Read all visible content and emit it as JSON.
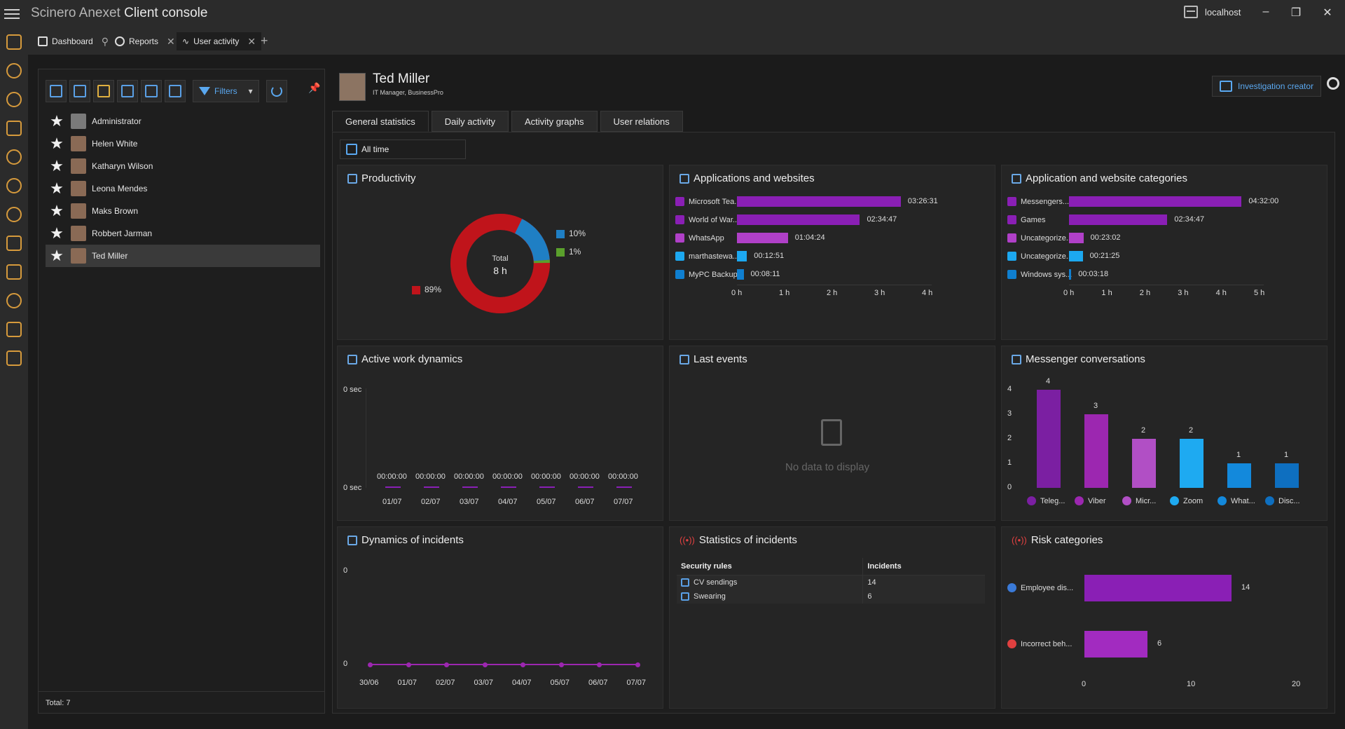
{
  "app": {
    "title_light": "Scinero Anexet",
    "title_main": "Client console",
    "server": "localhost"
  },
  "tabs": [
    {
      "label": "Dashboard"
    },
    {
      "label": "Reports"
    },
    {
      "label": "User activity"
    }
  ],
  "userpanel": {
    "filters_label": "Filters",
    "users": [
      "Administrator",
      "Helen White",
      "Katharyn Wilson",
      "Leona Mendes",
      "Maks Brown",
      "Robbert Jarman",
      "Ted Miller"
    ],
    "selected": "Ted Miller",
    "total": "Total: 7"
  },
  "profile": {
    "name": "Ted Miller",
    "subtitle": "IT Manager, BusinessPro",
    "investigation_button": "Investigation creator"
  },
  "detail_tabs": [
    "General statistics",
    "Daily activity",
    "Activity graphs",
    "User relations"
  ],
  "active_detail_tab": "General statistics",
  "range": {
    "label": "All time"
  },
  "productivity": {
    "title": "Productivity",
    "center_label": "Total",
    "center_value": "8 h",
    "legend": [
      {
        "label": "10%",
        "color": "#1f7fc4"
      },
      {
        "label": "1%",
        "color": "#5aa02c"
      },
      {
        "label": "89%",
        "color": "#c0141b"
      }
    ]
  },
  "apps_card": {
    "title": "Applications and websites",
    "items": [
      {
        "label": "Microsoft Tea...",
        "value": "03:26:31",
        "hours": 3.44,
        "color": "#8a1fb5"
      },
      {
        "label": "World of War...",
        "value": "02:34:47",
        "hours": 2.58,
        "color": "#8a1fb5"
      },
      {
        "label": "WhatsApp",
        "value": "01:04:24",
        "hours": 1.07,
        "color": "#b040c8"
      },
      {
        "label": "marthastewa...",
        "value": "00:12:51",
        "hours": 0.21,
        "color": "#1ca8f0"
      },
      {
        "label": "MyPC Backup",
        "value": "00:08:11",
        "hours": 0.14,
        "color": "#0f7fd0"
      }
    ],
    "ticks": [
      "0 h",
      "1 h",
      "2 h",
      "3 h",
      "4 h"
    ]
  },
  "categories_card": {
    "title": "Application and website categories",
    "items": [
      {
        "label": "Messengers...",
        "value": "04:32:00",
        "hours": 4.53,
        "color": "#8a1fb5"
      },
      {
        "label": "Games",
        "value": "02:34:47",
        "hours": 2.58,
        "color": "#8a1fb5"
      },
      {
        "label": "Uncategorize...",
        "value": "00:23:02",
        "hours": 0.38,
        "color": "#b040c8"
      },
      {
        "label": "Uncategorize...",
        "value": "00:21:25",
        "hours": 0.36,
        "color": "#1ca8f0"
      },
      {
        "label": "Windows sys...",
        "value": "00:03:18",
        "hours": 0.06,
        "color": "#0f7fd0"
      }
    ],
    "ticks": [
      "0 h",
      "1 h",
      "2 h",
      "3 h",
      "4 h",
      "5 h"
    ]
  },
  "active_work": {
    "title": "Active work dynamics",
    "y_top": "0 sec",
    "y_bottom": "0 sec",
    "dates": [
      "01/07",
      "02/07",
      "03/07",
      "04/07",
      "05/07",
      "06/07",
      "07/07"
    ],
    "values": [
      "00:00:00",
      "00:00:00",
      "00:00:00",
      "00:00:00",
      "00:00:00",
      "00:00:00",
      "00:00:00"
    ]
  },
  "last_events": {
    "title": "Last events",
    "empty": "No data to display"
  },
  "messenger": {
    "title": "Messenger conversations",
    "yticks": [
      "0",
      "1",
      "2",
      "3",
      "4"
    ],
    "items": [
      {
        "label": "Teleg...",
        "value": 4,
        "color": "#7b1fa2"
      },
      {
        "label": "Viber",
        "value": 3,
        "color": "#9c27b0"
      },
      {
        "label": "Micr...",
        "value": 2,
        "color": "#b14fc5"
      },
      {
        "label": "Zoom",
        "value": 2,
        "color": "#1eaaf1"
      },
      {
        "label": "What...",
        "value": 1,
        "color": "#1389dc"
      },
      {
        "label": "Disc...",
        "value": 1,
        "color": "#0e6fc0"
      }
    ]
  },
  "incidents_dyn": {
    "title": "Dynamics of incidents",
    "y_top": "0",
    "y_bottom": "0",
    "dates": [
      "30/06",
      "01/07",
      "02/07",
      "03/07",
      "04/07",
      "05/07",
      "06/07",
      "07/07"
    ],
    "values": [
      0,
      0,
      0,
      0,
      0,
      0,
      0,
      0
    ]
  },
  "incidents_stats": {
    "title": "Statistics of incidents",
    "columns": [
      "Security rules",
      "Incidents"
    ],
    "rows": [
      {
        "rule": "CV sendings",
        "count": "14"
      },
      {
        "rule": "Swearing",
        "count": "6"
      }
    ]
  },
  "risk": {
    "title": "Risk categories",
    "items": [
      {
        "label": "Employee dis...",
        "value": 14,
        "color": "#8a1fb5"
      },
      {
        "label": "Incorrect beh...",
        "value": 6,
        "color": "#a22bc0"
      }
    ],
    "ticks": [
      "0",
      "10",
      "20"
    ]
  },
  "colors": {
    "accent": "#5aa8f0",
    "purple": "#8a1fb5"
  }
}
